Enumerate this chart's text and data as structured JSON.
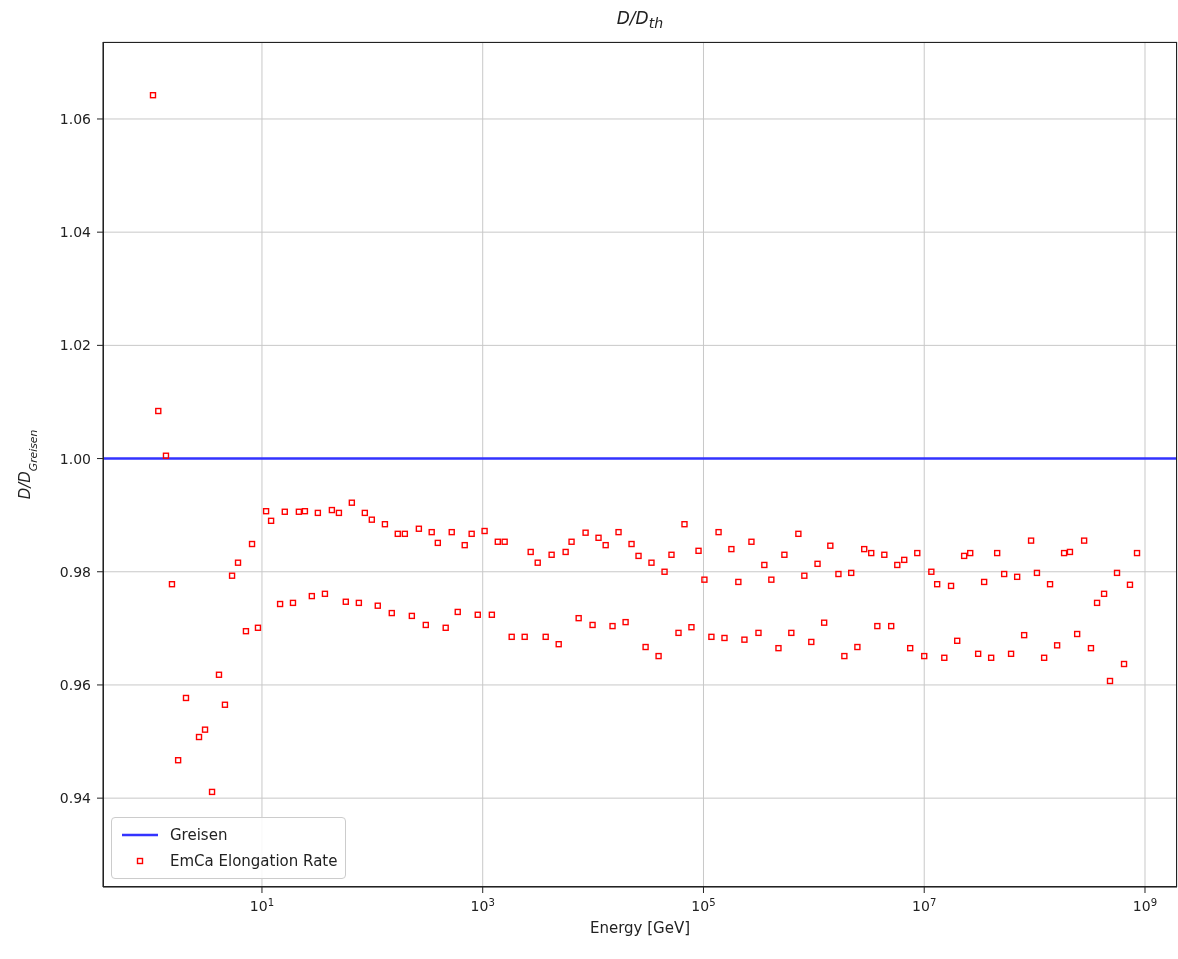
{
  "chart_data": {
    "type": "scatter",
    "title": "D/D$_{th}$",
    "xlabel": "Energy [GeV]",
    "ylabel": "D/D$_{Greisen}$",
    "log": "x",
    "grid": true,
    "legend": "bottom left",
    "xlim": [
      0.363,
      1950000000
    ],
    "xticks": [
      {
        "value": 10,
        "label": "10$^{1}$"
      },
      {
        "value": 1000,
        "label": "10$^{3}$"
      },
      {
        "value": 100000,
        "label": "10$^{5}$"
      },
      {
        "value": 10000000,
        "label": "10$^{7}$"
      },
      {
        "value": 1000000000,
        "label": "10$^{9}$"
      }
    ],
    "ylim": [
      0.9243,
      1.0736
    ],
    "yticks": [
      {
        "value": 0.94,
        "label": "0.94"
      },
      {
        "value": 0.96,
        "label": "0.96"
      },
      {
        "value": 0.98,
        "label": "0.98"
      },
      {
        "value": 1,
        "label": "1.00"
      },
      {
        "value": 1.02,
        "label": "1.02"
      },
      {
        "value": 1.04,
        "label": "1.04"
      },
      {
        "value": 1.06,
        "label": "1.06"
      }
    ],
    "series": [
      {
        "name": "Greisen",
        "type": "line",
        "color": "#3333ff",
        "x": [
          0.363,
          1950000000
        ],
        "values": [
          1,
          1
        ]
      },
      {
        "name": "EmCa Elongation Rate",
        "marker": "square",
        "color": "#ff0000",
        "x": [
          1.03,
          1.15,
          1.35,
          1.53,
          1.74,
          2.05,
          2.69,
          3.05,
          3.53,
          4.08,
          4.62,
          5.36,
          6.07,
          7.16,
          8.13,
          9.2,
          10.9,
          12.1,
          14.6,
          16.1,
          19.1,
          21.6,
          24.5,
          28.3,
          32.1,
          37.2,
          43,
          49.8,
          57.5,
          65.2,
          75.5,
          85.5,
          98.9,
          112,
          130,
          150,
          170,
          197,
          228,
          264,
          305,
          345,
          392,
          462,
          524,
          594,
          687,
          794,
          902,
          1040,
          1210,
          1370,
          1580,
          1830,
          2400,
          2720,
          3150,
          3720,
          4210,
          4880,
          5640,
          6380,
          7400,
          8550,
          9890,
          11200,
          13000,
          15000,
          17000,
          19700,
          22300,
          25800,
          29900,
          33800,
          39200,
          44400,
          51300,
          59400,
          67300,
          77800,
          90200,
          102000,
          118000,
          137000,
          155000,
          179000,
          207000,
          235000,
          272000,
          315000,
          356000,
          412000,
          478000,
          541000,
          625000,
          724000,
          820000,
          948000,
          1080000,
          1240000,
          1410000,
          1670000,
          1890000,
          2180000,
          2480000,
          2860000,
          3310000,
          3760000,
          4350000,
          5020000,
          5700000,
          6590000,
          7460000,
          8650000,
          10000000,
          11600000,
          13100000,
          15200000,
          17500000,
          19900000,
          23000000,
          26100000,
          30800000,
          34900000,
          40400000,
          45800000,
          53000000,
          61200000,
          69500000,
          80400000,
          92900000,
          105000000,
          122000000,
          138000000,
          160000000,
          185000000,
          209000000,
          243000000,
          281000000,
          324000000,
          368000000,
          426000000,
          482000000,
          558000000,
          646000000,
          731000000,
          847000000
        ],
        "values": [
          1.0642,
          1.0084,
          1.0005,
          0.9778,
          0.9467,
          0.9577,
          0.9508,
          0.9521,
          0.9411,
          0.9618,
          0.9565,
          0.9793,
          0.9816,
          0.9695,
          0.9849,
          0.9701,
          0.9907,
          0.989,
          0.9743,
          0.9906,
          0.9745,
          0.9906,
          0.9907,
          0.9757,
          0.9904,
          0.9761,
          0.9909,
          0.9904,
          0.9747,
          0.9922,
          0.9745,
          0.9904,
          0.9892,
          0.974,
          0.9884,
          0.9727,
          0.9867,
          0.9867,
          0.9722,
          0.9876,
          0.9706,
          0.987,
          0.9851,
          0.9701,
          0.987,
          0.9729,
          0.9847,
          0.9867,
          0.9724,
          0.9872,
          0.9724,
          0.9853,
          0.9853,
          0.9685,
          0.9685,
          0.9835,
          0.9816,
          0.9685,
          0.983,
          0.9672,
          0.9835,
          0.9853,
          0.9718,
          0.9869,
          0.9706,
          0.986,
          0.9847,
          0.9704,
          0.987,
          0.9711,
          0.9849,
          0.9828,
          0.9667,
          0.9816,
          0.9651,
          0.98,
          0.983,
          0.9692,
          0.9884,
          0.9702,
          0.9837,
          0.9786,
          0.9685,
          0.987,
          0.9683,
          0.984,
          0.9782,
          0.968,
          0.9853,
          0.9692,
          0.9812,
          0.9786,
          0.9665,
          0.983,
          0.9692,
          0.9867,
          0.9793,
          0.9676,
          0.9814,
          0.971,
          0.9846,
          0.9796,
          0.9651,
          0.9798,
          0.9667,
          0.984,
          0.9833,
          0.9704,
          0.983,
          0.9704,
          0.9812,
          0.9821,
          0.9665,
          0.9833,
          0.9651,
          0.98,
          0.9778,
          0.9648,
          0.9775,
          0.9678,
          0.9828,
          0.9833,
          0.9655,
          0.9782,
          0.9648,
          0.9833,
          0.9796,
          0.9655,
          0.9791,
          0.9688,
          0.9855,
          0.9798,
          0.9648,
          0.9778,
          0.967,
          0.9833,
          0.9835,
          0.969,
          0.9855,
          0.9665,
          0.9745,
          0.9761,
          0.9607,
          0.9798,
          0.9637,
          0.9777,
          0.9833
        ]
      }
    ]
  }
}
